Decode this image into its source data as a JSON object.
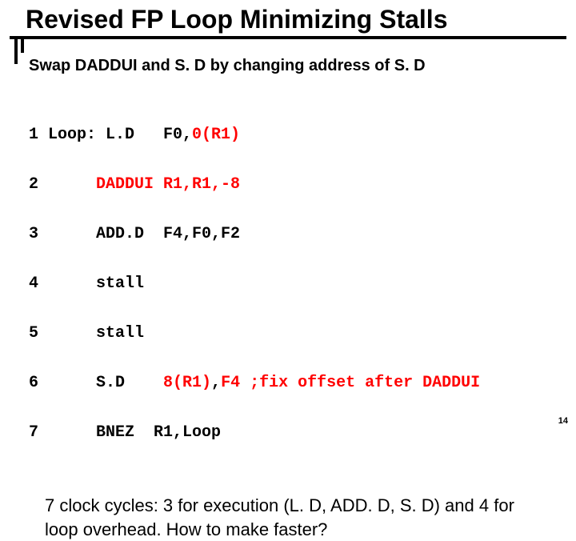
{
  "title": "Revised FP Loop Minimizing Stalls",
  "subtitle": "Swap DADDUI and S. D by changing address of S. D",
  "code": {
    "l1a": "1 Loop: L.D   F0,",
    "l1b": "0(R1)",
    "l2a": "2      ",
    "l2b": "DADDUI R1,R1,-8",
    "l3": "3      ADD.D  F4,F0,F2",
    "l4": "4      stall",
    "l5": "5      stall",
    "l6a": "6      S.D    ",
    "l6b": "8(R1)",
    "l6c": ",",
    "l6d": "F4",
    "l6e": " ;fix offset after DADDUI",
    "l7": "7      BNEZ  R1,Loop"
  },
  "summary": "7 clock cycles:  3 for execution (L. D,  ADD. D, S. D) and  4 for loop overhead. How to make  faster?",
  "pagenum": "14"
}
